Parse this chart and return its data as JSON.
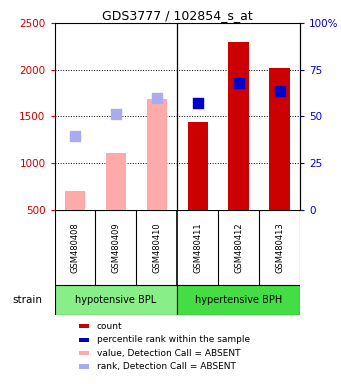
{
  "title": "GDS3777 / 102854_s_at",
  "samples": [
    "GSM480408",
    "GSM480409",
    "GSM480410",
    "GSM480411",
    "GSM480412",
    "GSM480413"
  ],
  "groups": [
    {
      "name": "hypotensive BPL",
      "color": "#88ee88"
    },
    {
      "name": "hypertensive BPH",
      "color": "#44dd44"
    }
  ],
  "bar_values": [
    null,
    null,
    null,
    1440,
    2300,
    2020
  ],
  "bar_values_absent": [
    700,
    1110,
    1690,
    null,
    null,
    null
  ],
  "bar_color_present": "#cc0000",
  "bar_color_absent": "#ffaaaa",
  "rank_dots": [
    1290,
    1530,
    1700,
    1640,
    1860,
    1770
  ],
  "rank_dot_absent_color": "#aaaaee",
  "rank_dot_present_color": "#0000cc",
  "absent_flags": [
    true,
    true,
    true,
    false,
    false,
    false
  ],
  "ylim_left": [
    500,
    2500
  ],
  "ylim_right": [
    0,
    100
  ],
  "yticks_left": [
    500,
    1000,
    1500,
    2000,
    2500
  ],
  "yticks_right": [
    0,
    25,
    50,
    75,
    100
  ],
  "background_color": "#ffffff",
  "left_tick_color": "#cc0000",
  "right_tick_color": "#0000cc",
  "legend_items": [
    {
      "color": "#cc0000",
      "label": "count"
    },
    {
      "color": "#0000cc",
      "label": "percentile rank within the sample"
    },
    {
      "color": "#ffaaaa",
      "label": "value, Detection Call = ABSENT"
    },
    {
      "color": "#aaaaee",
      "label": "rank, Detection Call = ABSENT"
    }
  ],
  "strain_label": "strain",
  "rank_dot_size": 45,
  "bar_width": 0.5,
  "grid_dotted_at": [
    1000,
    1500,
    2000
  ]
}
